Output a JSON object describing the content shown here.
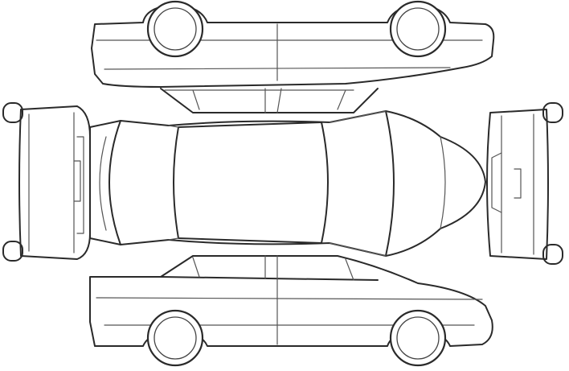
{
  "diagram": {
    "subject": "vehicle-damage-inspection-outline",
    "views": [
      "side-left-top",
      "front",
      "top",
      "rear",
      "side-right-bottom"
    ],
    "colors": {
      "stroke": "#2a2a2a",
      "background": "#ffffff"
    }
  }
}
